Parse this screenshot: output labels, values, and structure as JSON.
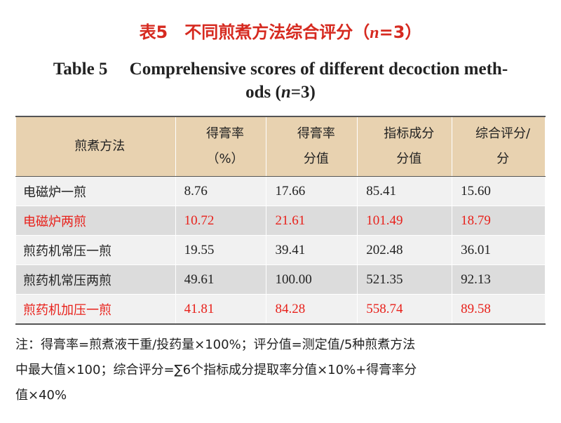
{
  "title": {
    "prefix": "表5　不同煎煮方法综合评分（",
    "var": "n",
    "suffix": "=3）"
  },
  "subtitle": {
    "line1": "Table 5　 Comprehensive scores of different decoction meth-",
    "line2_prefix": "ods (",
    "line2_var": "n",
    "line2_suffix": "=3)"
  },
  "table": {
    "header": [
      [
        "煎煮方法"
      ],
      [
        "得膏率",
        "（%）"
      ],
      [
        "得膏率",
        "分值"
      ],
      [
        "指标成分",
        "分值"
      ],
      [
        "综合评分/",
        "分"
      ]
    ],
    "rows": [
      {
        "highlight": false,
        "cells": [
          "电磁炉一煎",
          "8.76",
          "17.66",
          "85.41",
          "15.60"
        ]
      },
      {
        "highlight": true,
        "cells": [
          "电磁炉两煎",
          "10.72",
          "21.61",
          "101.49",
          "18.79"
        ]
      },
      {
        "highlight": false,
        "cells": [
          "煎药机常压一煎",
          "19.55",
          "39.41",
          "202.48",
          "36.01"
        ]
      },
      {
        "highlight": false,
        "cells": [
          "煎药机常压两煎",
          "49.61",
          "100.00",
          "521.35",
          "92.13"
        ]
      },
      {
        "highlight": true,
        "cells": [
          "煎药机加压一煎",
          "41.81",
          "84.28",
          "558.74",
          "89.58"
        ]
      }
    ]
  },
  "note": [
    "注：得膏率=煎煮液干重/投药量×100%；评分值=测定值/5种煎煮方法",
    "中最大值×100；综合评分=∑6个指标成分提取率分值×10%+得膏率分",
    "值×40%"
  ]
}
